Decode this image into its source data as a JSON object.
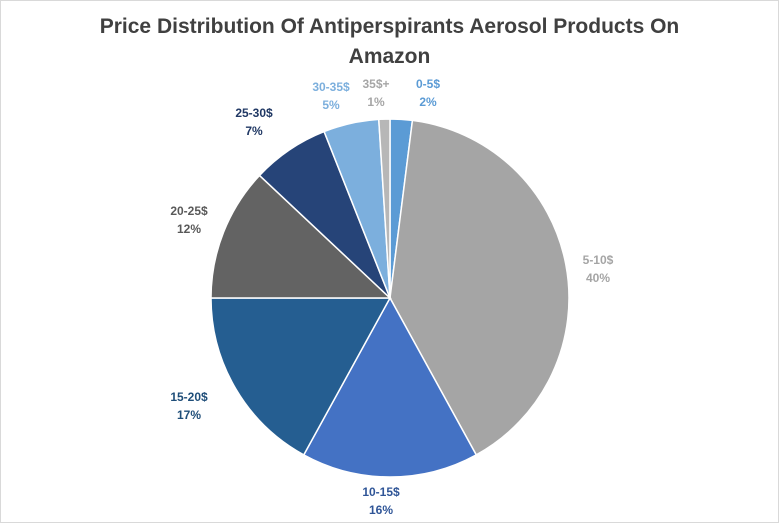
{
  "chart_data": {
    "type": "pie",
    "title": "Price Distribution  Of Antiperspirants Aerosol Products On Amazon",
    "start_angle_deg": 0,
    "direction": "clockwise",
    "slices": [
      {
        "label": "0-5$",
        "value": 2,
        "display": "2%",
        "color": "#5b9bd5",
        "label_color": "#5b9bd5"
      },
      {
        "label": "5-10$",
        "value": 40,
        "display": "40%",
        "color": "#a5a5a5",
        "label_color": "#a5a5a5"
      },
      {
        "label": "10-15$",
        "value": 16,
        "display": "16%",
        "color": "#4472c4",
        "label_color": "#2f5597"
      },
      {
        "label": "15-20$",
        "value": 17,
        "display": "17%",
        "color": "#255e91",
        "label_color": "#1f4e79"
      },
      {
        "label": "20-25$",
        "value": 12,
        "display": "12%",
        "color": "#636363",
        "label_color": "#595959"
      },
      {
        "label": "25-30$",
        "value": 7,
        "display": "7%",
        "color": "#264478",
        "label_color": "#203864"
      },
      {
        "label": "30-35$",
        "value": 5,
        "display": "5%",
        "color": "#7cafdd",
        "label_color": "#7cafdd"
      },
      {
        "label": "35$+",
        "value": 1,
        "display": "1%",
        "color": "#b7b7b7",
        "label_color": "#a6a6a6"
      }
    ]
  }
}
